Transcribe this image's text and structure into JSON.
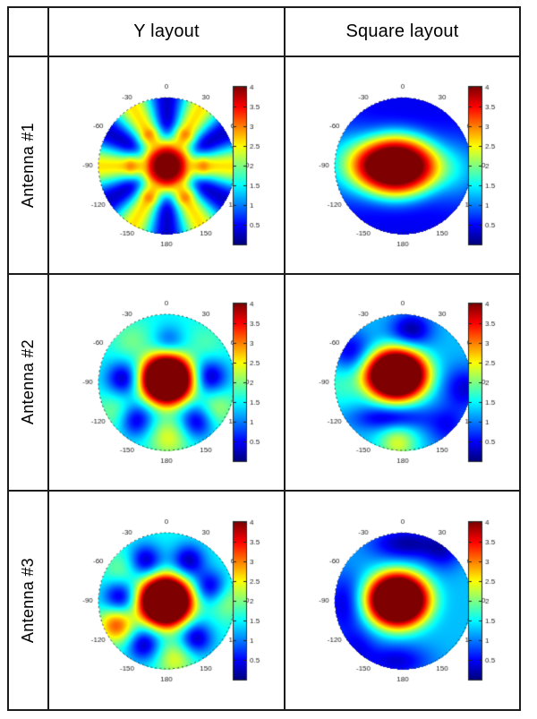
{
  "table": {
    "col_headers": [
      "Y layout",
      "Square layout"
    ],
    "row_headers": [
      "Antenna #1",
      "Antenna #2",
      "Antenna #3"
    ]
  },
  "chart_data": {
    "type": "heatmap",
    "variant": "polar beam-pattern maps (jet colormap), 3 antennas x 2 array layouts",
    "grid": {
      "rows": [
        "Antenna #1",
        "Antenna #2",
        "Antenna #3"
      ],
      "columns": [
        "Y layout",
        "Square layout"
      ]
    },
    "angle_ticks_deg": [
      0,
      30,
      60,
      90,
      120,
      150,
      180,
      -150,
      -120,
      -90,
      -60,
      -30
    ],
    "colorbar": {
      "min": 0,
      "max": 4,
      "ticks": [
        4,
        3.5,
        3,
        2.5,
        2,
        1.5,
        1,
        0.5
      ],
      "colormap": "jet"
    },
    "value_range": [
      0,
      4
    ],
    "plots": [
      {
        "id": "y-antenna-1",
        "row": "Antenna #1",
        "column": "Y layout",
        "peak_value": 4,
        "pattern_summary": "Strong central lobe (~4) with six deep blue nulls radiating at 0, +/-60, +/-120, 180 deg and yellow side lobes near +/-30, +/-90, +/-150 deg",
        "field": [
          {
            "kind": "blob",
            "x": 0,
            "y": 0,
            "sx": 0.42,
            "sy": 0.42,
            "p": 3,
            "amp": 4.25
          },
          {
            "kind": "ring",
            "r0": 0.28,
            "r1": 0.58,
            "base": 1.45,
            "amp": -1.15,
            "order": 6,
            "phase": 0
          }
        ]
      },
      {
        "id": "sq-antenna-1",
        "row": "Antenna #1",
        "column": "Square layout",
        "peak_value": 4,
        "pattern_summary": "Broad red lobe stretched toward -90 deg; deep blue top (0 deg) and bottom (180 deg) rims, green shoulder at the -90 deg rim",
        "field": [
          {
            "kind": "base",
            "v": 0.45
          },
          {
            "kind": "blob",
            "x": -0.1,
            "y": 0.0,
            "sx": 0.62,
            "sy": 0.46,
            "p": 3,
            "amp": 4.2
          },
          {
            "kind": "blob",
            "x": -0.85,
            "y": 0.05,
            "sx": 0.45,
            "sy": 0.5,
            "p": 2,
            "amp": 1.0
          },
          {
            "kind": "blob",
            "x": 0.78,
            "y": -0.05,
            "sx": 0.42,
            "sy": 0.45,
            "p": 2,
            "amp": 0.85
          }
        ]
      },
      {
        "id": "y-antenna-2",
        "row": "Antenna #2",
        "column": "Y layout",
        "peak_value": 4,
        "pattern_summary": "Central red lobe; blue nulls near +/-85 and +/-140 deg, small dip toward 0 deg, yellow side lobes near 180, 120 and -120 deg",
        "field": [
          {
            "kind": "base",
            "v": 1.5
          },
          {
            "kind": "blob",
            "x": 0,
            "y": 0.05,
            "sx": 0.4,
            "sy": 0.38,
            "p": 3,
            "amp": 4.2
          },
          {
            "kind": "blob",
            "x": -0.65,
            "y": 0.06,
            "sx": 0.25,
            "sy": 0.25,
            "p": 2,
            "amp": -1.25
          },
          {
            "kind": "blob",
            "x": 0.64,
            "y": 0.09,
            "sx": 0.25,
            "sy": 0.25,
            "p": 2,
            "amp": -1.25
          },
          {
            "kind": "blob",
            "x": -0.46,
            "y": -0.55,
            "sx": 0.25,
            "sy": 0.25,
            "p": 2,
            "amp": -1.25
          },
          {
            "kind": "blob",
            "x": 0.44,
            "y": -0.57,
            "sx": 0.25,
            "sy": 0.25,
            "p": 2,
            "amp": -1.25
          },
          {
            "kind": "blob",
            "x": 0.03,
            "y": 0.62,
            "sx": 0.22,
            "sy": 0.22,
            "p": 2,
            "amp": -0.6
          },
          {
            "kind": "blob",
            "x": 0.03,
            "y": -0.8,
            "sx": 0.3,
            "sy": 0.3,
            "p": 2,
            "amp": 0.9
          },
          {
            "kind": "blob",
            "x": 0.72,
            "y": -0.38,
            "sx": 0.28,
            "sy": 0.28,
            "p": 2,
            "amp": 0.7
          },
          {
            "kind": "blob",
            "x": -0.74,
            "y": -0.43,
            "sx": 0.3,
            "sy": 0.3,
            "p": 2,
            "amp": 0.55
          },
          {
            "kind": "blob",
            "x": -0.51,
            "y": 0.61,
            "sx": 0.3,
            "sy": 0.3,
            "p": 2,
            "amp": 0.45
          },
          {
            "kind": "blob",
            "x": 0.57,
            "y": 0.57,
            "sx": 0.3,
            "sy": 0.3,
            "p": 2,
            "amp": 0.3
          }
        ]
      },
      {
        "id": "sq-antenna-2",
        "row": "Antenna #2",
        "column": "Square layout",
        "peak_value": 4,
        "pattern_summary": "Red lobe shifted up-left of center; blue patches near the 0-30 deg and -60 deg rims and the 90-120 deg rim, dark trough below the lobe, yellow lobe at the bottom rim",
        "field": [
          {
            "kind": "base",
            "v": 1.25
          },
          {
            "kind": "blob",
            "x": -0.1,
            "y": 0.12,
            "sx": 0.48,
            "sy": 0.4,
            "p": 3,
            "amp": 4.2
          },
          {
            "kind": "blob",
            "x": 0.12,
            "y": 0.78,
            "sx": 0.3,
            "sy": 0.25,
            "p": 2,
            "amp": -1.1
          },
          {
            "kind": "blob",
            "x": -0.78,
            "y": 0.45,
            "sx": 0.3,
            "sy": 0.3,
            "p": 2,
            "amp": -0.9
          },
          {
            "kind": "blob",
            "x": 0.9,
            "y": -0.08,
            "sx": 0.32,
            "sy": 0.32,
            "p": 2,
            "amp": -0.9
          },
          {
            "kind": "blob",
            "x": -0.19,
            "y": -0.52,
            "sx": 0.55,
            "sy": 0.18,
            "p": 2,
            "amp": -1.0
          },
          {
            "kind": "blob",
            "x": 0.65,
            "y": -0.65,
            "sx": 0.3,
            "sy": 0.3,
            "p": 2,
            "amp": -0.7
          },
          {
            "kind": "blob",
            "x": -0.08,
            "y": -0.88,
            "sx": 0.28,
            "sy": 0.28,
            "p": 2,
            "amp": 1.1
          },
          {
            "kind": "blob",
            "x": -0.9,
            "y": 0.0,
            "sx": 0.35,
            "sy": 0.35,
            "p": 2,
            "amp": 0.5
          }
        ]
      },
      {
        "id": "y-antenna-3",
        "row": "Antenna #3",
        "column": "Y layout",
        "peak_value": 4,
        "pattern_summary": "Central red lobe; blue nulls near +/-30, -85, 70, +/-145 deg; strong orange side lobe at the -120 deg rim, yellow lobes near 180 and 90 deg",
        "field": [
          {
            "kind": "base",
            "v": 1.5
          },
          {
            "kind": "blob",
            "x": -0.02,
            "y": 0.0,
            "sx": 0.41,
            "sy": 0.39,
            "p": 3,
            "amp": 4.2
          },
          {
            "kind": "blob",
            "x": -0.32,
            "y": 0.6,
            "sx": 0.24,
            "sy": 0.24,
            "p": 2,
            "amp": -1.25
          },
          {
            "kind": "blob",
            "x": 0.32,
            "y": 0.6,
            "sx": 0.24,
            "sy": 0.24,
            "p": 2,
            "amp": -1.25
          },
          {
            "kind": "blob",
            "x": -0.7,
            "y": 0.06,
            "sx": 0.24,
            "sy": 0.24,
            "p": 2,
            "amp": -1.25
          },
          {
            "kind": "blob",
            "x": 0.65,
            "y": 0.21,
            "sx": 0.24,
            "sy": 0.24,
            "p": 2,
            "amp": -1.25
          },
          {
            "kind": "blob",
            "x": -0.34,
            "y": -0.64,
            "sx": 0.24,
            "sy": 0.24,
            "p": 2,
            "amp": -1.25
          },
          {
            "kind": "blob",
            "x": 0.43,
            "y": -0.55,
            "sx": 0.24,
            "sy": 0.24,
            "p": 2,
            "amp": -1.25
          },
          {
            "kind": "blob",
            "x": -0.74,
            "y": -0.35,
            "sx": 0.26,
            "sy": 0.26,
            "p": 2,
            "amp": 1.7
          },
          {
            "kind": "blob",
            "x": 0.12,
            "y": -0.84,
            "sx": 0.28,
            "sy": 0.28,
            "p": 2,
            "amp": 0.9
          },
          {
            "kind": "blob",
            "x": 0.88,
            "y": 0.03,
            "sx": 0.3,
            "sy": 0.3,
            "p": 2,
            "amp": 0.65
          },
          {
            "kind": "blob",
            "x": -0.66,
            "y": 0.46,
            "sx": 0.28,
            "sy": 0.28,
            "p": 2,
            "amp": 0.5
          }
        ]
      },
      {
        "id": "sq-antenna-3",
        "row": "Antenna #3",
        "column": "Square layout",
        "peak_value": 4,
        "pattern_summary": "Red lobe slightly left of center with yellow halo; blue band along the top rim, blue left and bottom rims, cyan right side",
        "field": [
          {
            "kind": "base",
            "v": 1.25
          },
          {
            "kind": "blob",
            "x": -0.08,
            "y": 0.02,
            "sx": 0.48,
            "sy": 0.42,
            "p": 3,
            "amp": 4.2
          },
          {
            "kind": "blob",
            "x": 0.05,
            "y": 0.85,
            "sx": 0.55,
            "sy": 0.25,
            "p": 2,
            "amp": -1.1
          },
          {
            "kind": "blob",
            "x": -0.88,
            "y": -0.05,
            "sx": 0.3,
            "sy": 0.5,
            "p": 2,
            "amp": -0.85
          },
          {
            "kind": "blob",
            "x": -0.1,
            "y": -0.88,
            "sx": 0.5,
            "sy": 0.25,
            "p": 2,
            "amp": -0.9
          },
          {
            "kind": "blob",
            "x": 0.6,
            "y": 0.72,
            "sx": 0.28,
            "sy": 0.28,
            "p": 2,
            "amp": -0.7
          },
          {
            "kind": "blob",
            "x": -0.67,
            "y": -0.67,
            "sx": 0.28,
            "sy": 0.28,
            "p": 2,
            "amp": -0.6
          }
        ]
      }
    ]
  },
  "style_colors": {
    "border": "#1c1c1c",
    "background": "#ffffff",
    "tick_text": "#1a1a1a"
  }
}
